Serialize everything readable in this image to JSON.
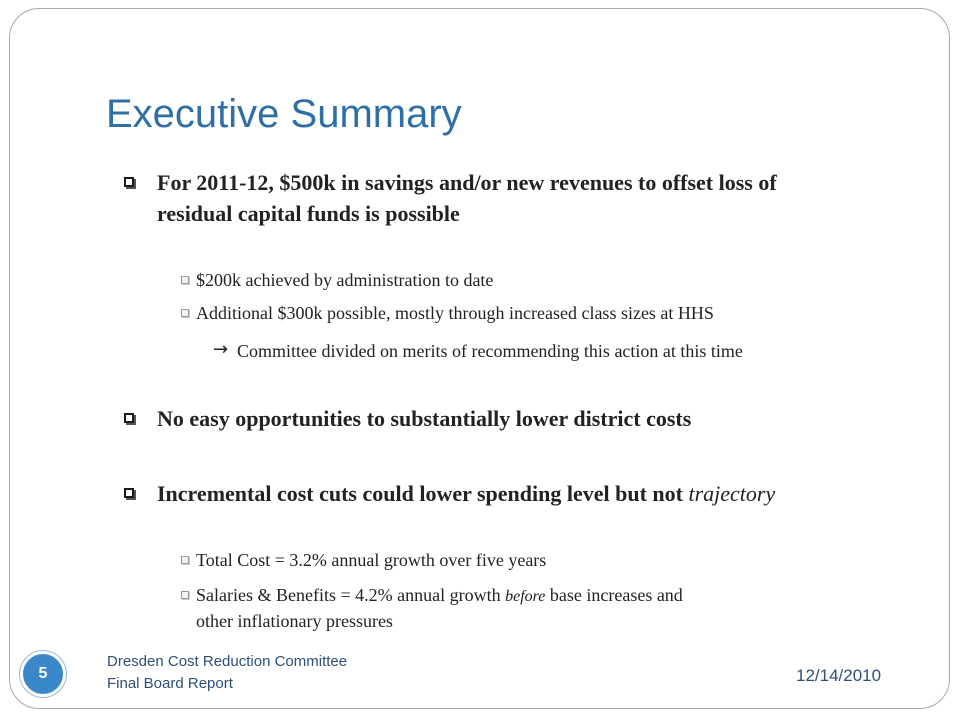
{
  "slide": {
    "title": "Executive Summary",
    "bullets": {
      "b1_line1": "For 2011-12, $500k in savings and/or new revenues to offset loss of",
      "b1_line2": "residual capital funds is possible",
      "b1_sub1": "$200k achieved by administration to date",
      "b1_sub2": "Additional $300k possible, mostly through increased class sizes at HHS",
      "b1_sub2_note": "Committee divided on merits of recommending this action at this time",
      "b2": "No easy opportunities to substantially lower district costs",
      "b3_main": "Incremental cost cuts could lower spending level but not ",
      "b3_italic": "trajectory",
      "b3_sub1": "Total Cost = 3.2% annual growth over five years",
      "b3_sub2_part1": "Salaries & Benefits = 4.2% annual growth ",
      "b3_sub2_italic": "before",
      "b3_sub2_part2": " base increases and",
      "b3_sub2_line2": "other inflationary pressures"
    }
  },
  "footer": {
    "page_number": "5",
    "line1": "Dresden Cost Reduction Committee",
    "line2": "Final Board Report",
    "date": "12/14/2010"
  },
  "colors": {
    "title": "#2f6fa6",
    "page_circle": "#3a88c9",
    "footer_text": "#2d4f78"
  }
}
